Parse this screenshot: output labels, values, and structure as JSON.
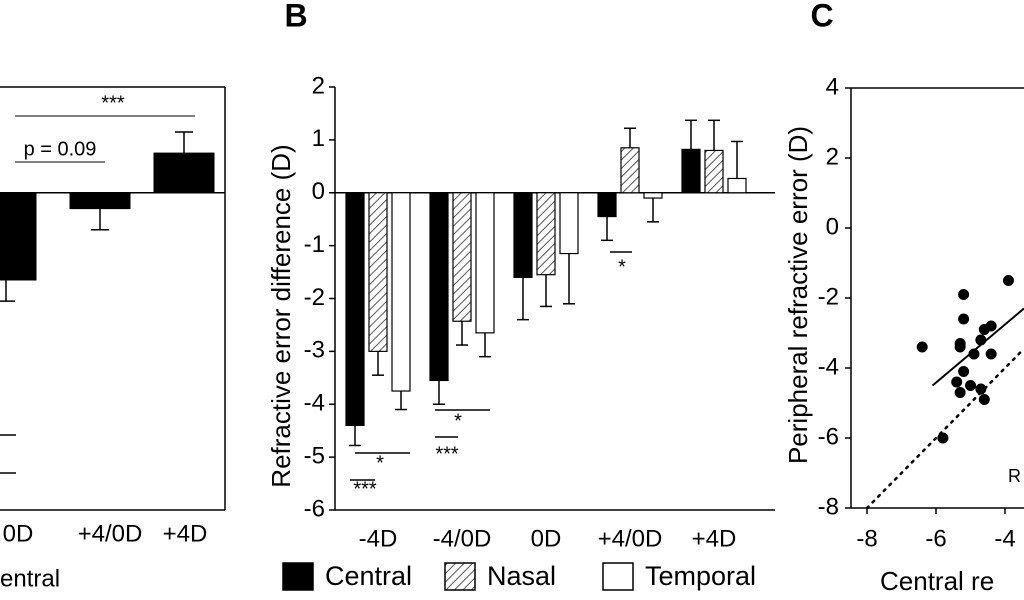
{
  "chart_data": [
    {
      "type": "bar",
      "categories": [
        "0D",
        "+4/0D",
        "+4D"
      ],
      "values": [
        -1.65,
        -0.3,
        0.75
      ],
      "errors": [
        0.4,
        0.4,
        0.4
      ],
      "color": "#000000",
      "ylim": [
        -6,
        2
      ],
      "xlabel": "entral",
      "annotations": [
        "***",
        "p = 0.09"
      ]
    },
    {
      "type": "grouped-bar",
      "panel_label": "B",
      "ylabel": "Refractive error difference (D)",
      "categories": [
        "-4D",
        "-4/0D",
        "0D",
        "+4/0D",
        "+4D"
      ],
      "series": [
        {
          "name": "Central",
          "color": "#000000",
          "values": [
            -4.4,
            -3.55,
            -1.6,
            -0.45,
            0.82
          ],
          "errors": [
            0.38,
            0.45,
            0.8,
            0.45,
            0.55
          ]
        },
        {
          "name": "Nasal",
          "color": "#555555",
          "pattern": "hatch",
          "values": [
            -3.0,
            -2.43,
            -1.55,
            0.85,
            0.8
          ],
          "errors": [
            0.45,
            0.45,
            0.6,
            0.37,
            0.57
          ]
        },
        {
          "name": "Temporal",
          "color": "#ffffff",
          "values": [
            -3.75,
            -2.65,
            -1.15,
            -0.1,
            0.27
          ],
          "errors": [
            0.35,
            0.45,
            0.95,
            0.45,
            0.7
          ]
        }
      ],
      "ylim": [
        -6,
        2
      ],
      "yticks": [
        -6,
        -5,
        -4,
        -3,
        -2,
        -1,
        0,
        1,
        2
      ],
      "annotations": [
        "*",
        "***",
        "*",
        "***",
        "*"
      ]
    },
    {
      "type": "scatter",
      "panel_label": "C",
      "ylabel": "Peripheral refractive error (D)",
      "xlabel": "Central re",
      "annotation": "R",
      "color": "#000000",
      "x": [
        -6.4,
        -5.2,
        -3.9,
        -5.3,
        -5.3,
        -5.2,
        -4.6,
        -4.4,
        -4.7,
        -5.2,
        -5.4,
        -4.9,
        -4.4,
        -5.0,
        -4.7,
        -5.3,
        -4.6,
        -5.8
      ],
      "y": [
        -3.4,
        -1.9,
        -1.5,
        -3.3,
        -3.4,
        -2.6,
        -2.9,
        -2.8,
        -3.2,
        -4.1,
        -4.4,
        -3.6,
        -3.6,
        -4.5,
        -4.6,
        -4.7,
        -4.9,
        -6.0
      ],
      "fit": {
        "x": [
          -6.1,
          -3.45
        ],
        "y": [
          -4.5,
          -2.3
        ]
      },
      "xlim": [
        -8.5,
        2.5
      ],
      "xticks": [
        -8,
        -6,
        -4
      ],
      "ylim": [
        -8,
        4
      ],
      "yticks": [
        -8,
        -6,
        -4,
        -2,
        0,
        2,
        4
      ]
    }
  ]
}
